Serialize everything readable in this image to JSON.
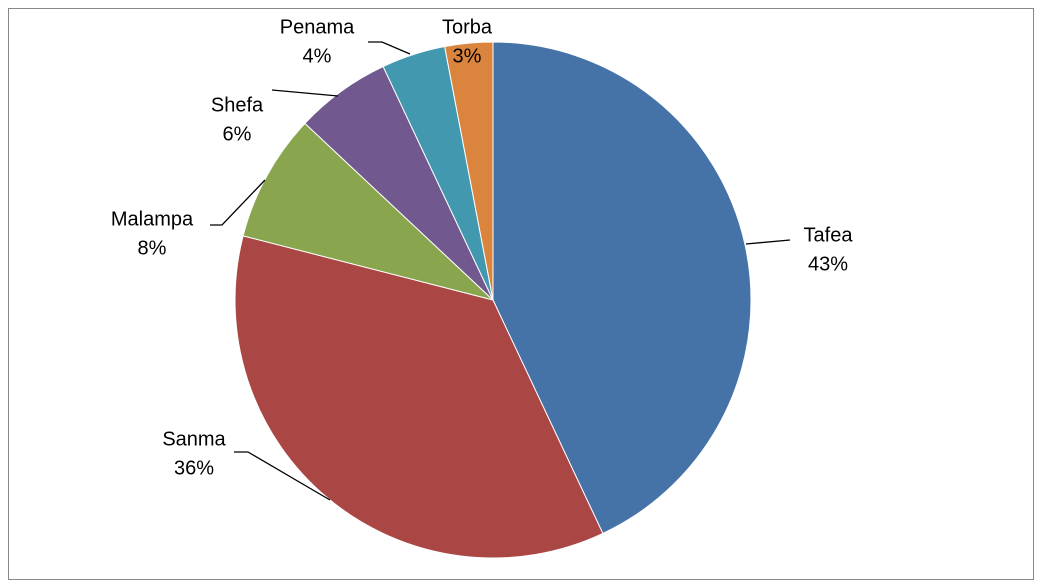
{
  "chart_data": {
    "type": "pie",
    "categories": [
      "Tafea",
      "Sanma",
      "Malampa",
      "Shefa",
      "Penama",
      "Torba"
    ],
    "values": [
      43,
      36,
      8,
      6,
      4,
      3
    ],
    "value_labels": [
      "43%",
      "36%",
      "8%",
      "6%",
      "4%",
      "3%"
    ],
    "colors": [
      "#4572a7",
      "#aa4643",
      "#89a54e",
      "#71588f",
      "#4198af",
      "#db843d"
    ]
  }
}
